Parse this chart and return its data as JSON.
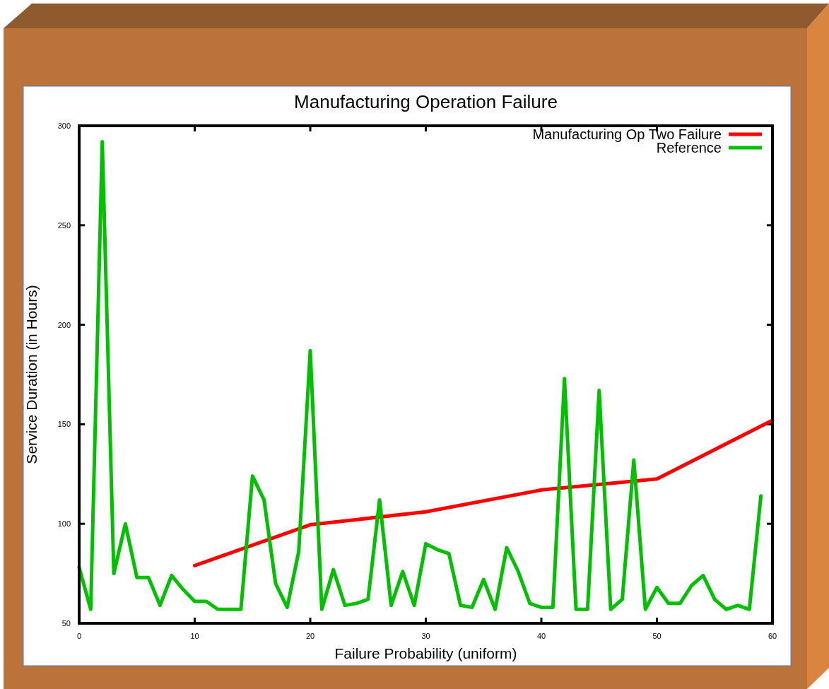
{
  "chart_data": {
    "type": "line",
    "title": "Manufacturing Operation Failure",
    "xlabel": "Failure Probability (uniform)",
    "ylabel": "Service Duration (in Hours)",
    "xlim": [
      0,
      60
    ],
    "xticks": [
      0,
      10,
      20,
      30,
      40,
      50,
      60
    ],
    "ylim": [
      50,
      300
    ],
    "yticks": [
      50,
      100,
      150,
      200,
      250,
      300
    ],
    "grid": false,
    "legend": "top right",
    "marker": "none",
    "line_style": "solid",
    "series": [
      {
        "name": "Manufacturing Op Two Failure",
        "color": "#ff0000",
        "x": [
          10,
          20,
          30,
          40,
          50,
          60
        ],
        "values": [
          79,
          99.5,
          106,
          117,
          122.5,
          152
        ]
      },
      {
        "name": "Reference",
        "color": "#00c000",
        "x": [
          0,
          1,
          2,
          3,
          4,
          5,
          6,
          7,
          8,
          9,
          10,
          11,
          12,
          13,
          14,
          15,
          16,
          17,
          18,
          19,
          20,
          21,
          22,
          23,
          24,
          25,
          26,
          27,
          28,
          29,
          30,
          31,
          32,
          33,
          34,
          35,
          36,
          37,
          38,
          39,
          40,
          41,
          42,
          43,
          44,
          45,
          46,
          47,
          48,
          49,
          50,
          51,
          52,
          53,
          54,
          55,
          56,
          57,
          58,
          59
        ],
        "values": [
          78,
          57,
          292,
          75,
          100,
          73,
          73,
          59,
          74,
          67,
          61,
          61,
          57,
          57,
          57,
          124,
          112,
          70,
          58,
          86,
          187,
          57,
          77,
          59,
          60,
          62,
          112,
          59,
          76,
          59,
          90,
          87,
          85,
          59,
          58,
          72,
          57,
          88,
          76,
          60,
          58,
          58,
          173,
          57,
          57,
          167,
          57,
          62,
          132,
          57,
          68,
          60,
          60,
          69,
          74,
          62,
          57,
          59,
          57,
          114
        ]
      }
    ]
  }
}
